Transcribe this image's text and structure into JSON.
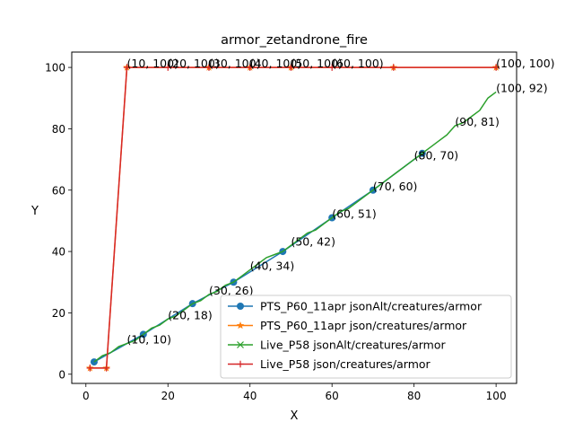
{
  "chart_data": {
    "type": "line",
    "title": "armor_zetandrone_fire",
    "xlabel": "X",
    "ylabel": "Y",
    "xlim": [
      -3.45,
      105
    ],
    "ylim": [
      -3,
      105
    ],
    "xticks": [
      0,
      20,
      40,
      60,
      80,
      100
    ],
    "yticks": [
      0,
      20,
      40,
      60,
      80,
      100
    ],
    "grid": false,
    "legend_position": "lower-right",
    "series": [
      {
        "name": "PTS_P60_11apr jsonAlt/creatures/armor",
        "color": "#1f77b4",
        "marker": "circle",
        "x": [
          2,
          14,
          26,
          36,
          48,
          60,
          70,
          82
        ],
        "y": [
          4,
          13,
          23,
          30,
          40,
          51,
          60,
          72
        ]
      },
      {
        "name": "PTS_P60_11apr json/creatures/armor",
        "color": "#ff7f0e",
        "marker": "star",
        "x": [
          1,
          5,
          10,
          30,
          40,
          50,
          75,
          100
        ],
        "y": [
          2,
          2,
          100,
          100,
          100,
          100,
          100,
          100
        ]
      },
      {
        "name": "Live_P58 jsonAlt/creatures/armor",
        "color": "#2ca02c",
        "marker": "x",
        "x": [
          2,
          4,
          6,
          8,
          10,
          12,
          14,
          16,
          18,
          20,
          22,
          24,
          26,
          28,
          30,
          32,
          34,
          36,
          38,
          40,
          42,
          44,
          46,
          48,
          50,
          52,
          54,
          56,
          58,
          60,
          62,
          64,
          66,
          68,
          70,
          72,
          74,
          76,
          78,
          80,
          82,
          84,
          86,
          88,
          90,
          92,
          94,
          96,
          98,
          100
        ],
        "y": [
          4,
          6,
          7,
          9,
          10,
          11,
          13,
          15,
          16,
          18,
          19,
          21,
          23,
          24,
          26,
          27,
          29,
          30,
          32,
          34,
          36,
          38,
          39,
          40,
          42,
          44,
          46,
          47,
          49,
          51,
          53,
          54,
          56,
          58,
          60,
          62,
          64,
          66,
          68,
          70,
          72,
          74,
          76,
          78,
          81,
          82,
          84,
          86,
          90,
          92
        ]
      },
      {
        "name": "Live_P58 json/creatures/armor",
        "color": "#d62728",
        "marker": "plus",
        "x": [
          1,
          5,
          10,
          20,
          30,
          40,
          50,
          60,
          75,
          100
        ],
        "y": [
          2,
          2,
          100,
          100,
          100,
          100,
          100,
          100,
          100,
          100
        ]
      }
    ],
    "annotations": [
      {
        "text": "(10, 10)",
        "x": 10,
        "y": 10
      },
      {
        "text": "(20, 18)",
        "x": 20,
        "y": 18
      },
      {
        "text": "(30, 26)",
        "x": 30,
        "y": 26
      },
      {
        "text": "(40, 34)",
        "x": 40,
        "y": 34
      },
      {
        "text": "(50, 42)",
        "x": 50,
        "y": 42
      },
      {
        "text": "(60, 51)",
        "x": 60,
        "y": 51
      },
      {
        "text": "(70, 60)",
        "x": 70,
        "y": 60
      },
      {
        "text": "(80, 70)",
        "x": 80,
        "y": 70
      },
      {
        "text": "(90, 81)",
        "x": 90,
        "y": 81
      },
      {
        "text": "(100, 92)",
        "x": 100,
        "y": 92
      },
      {
        "text": "(10, 100)",
        "x": 10,
        "y": 100
      },
      {
        "text": "(20, 100)",
        "x": 20,
        "y": 100
      },
      {
        "text": "(30, 100)",
        "x": 30,
        "y": 100
      },
      {
        "text": "(40, 100)",
        "x": 40,
        "y": 100
      },
      {
        "text": "(50, 100)",
        "x": 50,
        "y": 100
      },
      {
        "text": "(60, 100)",
        "x": 60,
        "y": 100
      },
      {
        "text": "(100, 100)",
        "x": 100,
        "y": 100
      }
    ]
  }
}
